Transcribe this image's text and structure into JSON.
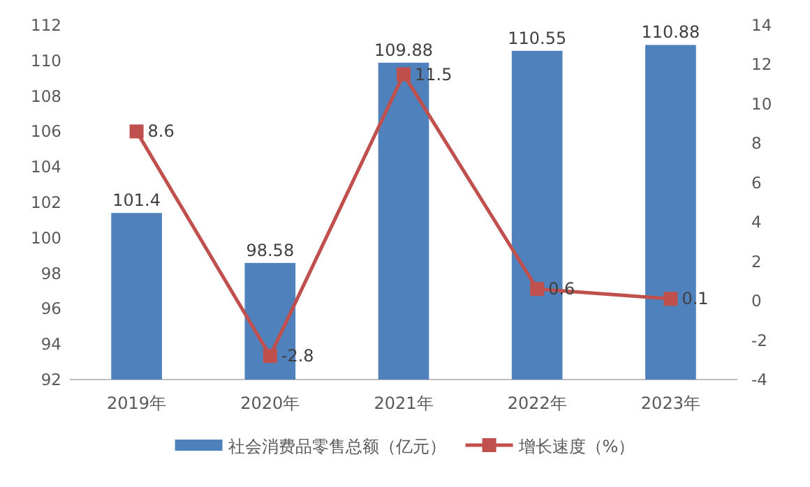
{
  "chart_data": {
    "type": "bar",
    "categories": [
      "2019年",
      "2020年",
      "2021年",
      "2022年",
      "2023年"
    ],
    "ylim": [
      92,
      112
    ],
    "yticks": [
      92,
      94,
      96,
      98,
      100,
      102,
      104,
      106,
      108,
      110,
      112
    ],
    "y2lim": [
      -4,
      14
    ],
    "y2ticks": [
      -4,
      -2,
      0,
      2,
      4,
      6,
      8,
      10,
      12,
      14
    ],
    "legend": "bottom",
    "grid": false,
    "data_labels": true,
    "series": [
      {
        "name": "社会消费品零售总额（亿元）",
        "color": "#4f81bd",
        "values": [
          101.4,
          98.58,
          109.88,
          110.55,
          110.88
        ]
      },
      {
        "name": "增长速度（%）",
        "type": "line",
        "axis": "y2",
        "color": "#c0504d",
        "marker": "square",
        "values": [
          8.6,
          -2.8,
          11.5,
          0.6,
          0.1
        ]
      }
    ]
  }
}
